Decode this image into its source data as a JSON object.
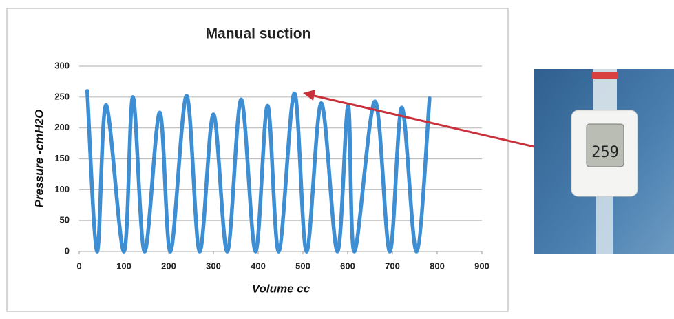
{
  "chart_data": {
    "type": "line",
    "title": "Manual suction",
    "x_label": "Volume cc",
    "y_label": "Pressure -cmH2O",
    "x": [
      18,
      40,
      60,
      100,
      120,
      146,
      180,
      204,
      240,
      269,
      300,
      331,
      362,
      394,
      421,
      446,
      481,
      508,
      541,
      577,
      601,
      615,
      661,
      694,
      721,
      754,
      783
    ],
    "series": [
      {
        "color": "#3d8ed3",
        "values": [
          260,
          0,
          237,
          0,
          250,
          0,
          225,
          0,
          252,
          0,
          222,
          0,
          246,
          0,
          236,
          0,
          256,
          0,
          240,
          0,
          236,
          0,
          243,
          0,
          233,
          0,
          248
        ]
      }
    ],
    "xlim": [
      0,
      900
    ],
    "xticks": [
      0,
      100,
      200,
      300,
      400,
      500,
      600,
      700,
      800,
      900
    ],
    "ylim": [
      0,
      300
    ],
    "yticks": [
      0,
      50,
      100,
      150,
      200,
      250,
      300
    ],
    "grid": true
  },
  "inset_photo": {
    "display": "259"
  }
}
